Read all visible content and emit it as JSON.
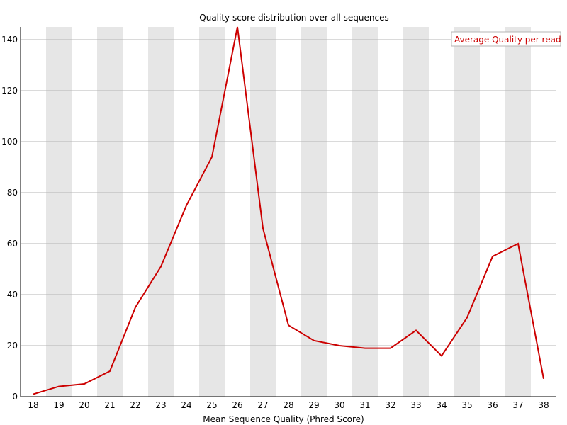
{
  "chart_data": {
    "type": "line",
    "title": "Quality score distribution over all sequences",
    "xlabel": "Mean Sequence Quality (Phred Score)",
    "ylabel": "",
    "x": [
      18,
      19,
      20,
      21,
      22,
      23,
      24,
      25,
      26,
      27,
      28,
      29,
      30,
      31,
      32,
      33,
      34,
      35,
      36,
      37,
      38
    ],
    "xlim": [
      18,
      38
    ],
    "ylim": [
      0,
      145
    ],
    "yticks": [
      0,
      20,
      40,
      60,
      80,
      100,
      120,
      140
    ],
    "grid": true,
    "alternating_bands": true,
    "legend_position": "top-right",
    "series": [
      {
        "name": "Average Quality per read",
        "color": "#cc0000",
        "values": [
          1,
          4,
          5,
          10,
          35,
          51,
          75,
          94,
          145,
          66,
          28,
          22,
          20,
          19,
          19,
          26,
          16,
          31,
          55,
          60,
          7
        ]
      }
    ],
    "colors": {
      "band": "#e6e6e6",
      "grid": "#b4b4b4",
      "axis": "#000000",
      "legend_border": "#b4b4b4"
    }
  }
}
